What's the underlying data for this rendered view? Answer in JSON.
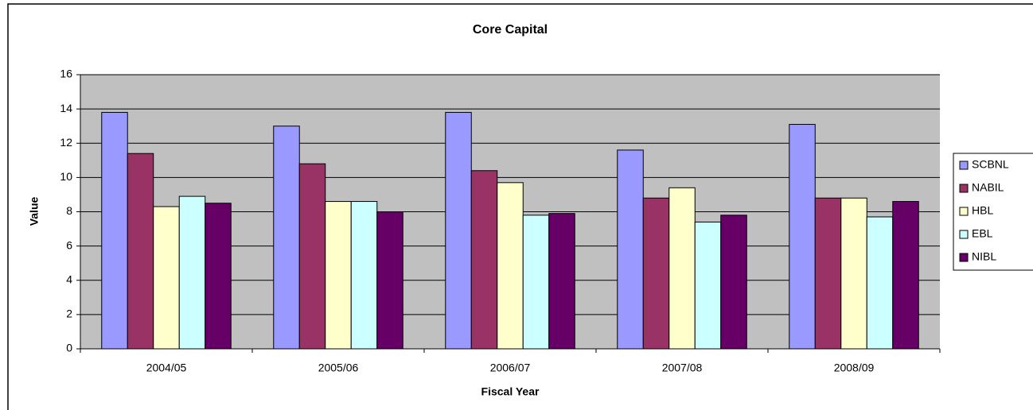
{
  "chart_data": {
    "type": "bar",
    "title": "Core Capital",
    "x_label": "Fiscal Year",
    "y_label": "Value",
    "categories": [
      "2004/05",
      "2005/06",
      "2006/07",
      "2007/08",
      "2008/09"
    ],
    "series": [
      {
        "name": "SCBNL",
        "color": "#9999ff",
        "values": [
          13.8,
          13.0,
          13.8,
          11.6,
          13.1
        ]
      },
      {
        "name": "NABIL",
        "color": "#993366",
        "values": [
          11.4,
          10.8,
          10.4,
          8.8,
          8.8
        ]
      },
      {
        "name": "HBL",
        "color": "#ffffcc",
        "values": [
          8.3,
          8.6,
          9.7,
          9.4,
          8.8
        ]
      },
      {
        "name": "EBL",
        "color": "#ccffff",
        "values": [
          8.9,
          8.6,
          7.8,
          7.4,
          7.7
        ]
      },
      {
        "name": "NIBL",
        "color": "#660066",
        "values": [
          8.5,
          8.0,
          7.9,
          7.8,
          8.6
        ]
      }
    ],
    "ylim": [
      0,
      16
    ],
    "yticks": [
      0,
      2,
      4,
      6,
      8,
      10,
      12,
      14,
      16
    ],
    "grid": true,
    "legend": "right"
  }
}
